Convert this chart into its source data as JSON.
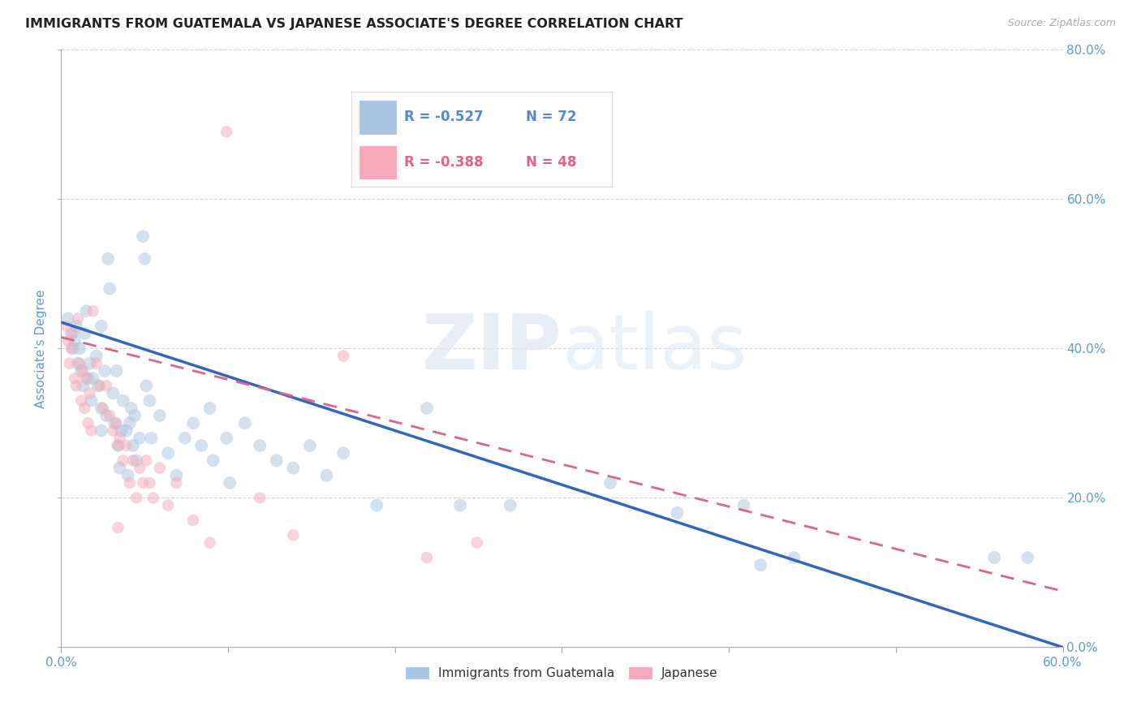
{
  "title": "IMMIGRANTS FROM GUATEMALA VS JAPANESE ASSOCIATE'S DEGREE CORRELATION CHART",
  "source": "Source: ZipAtlas.com",
  "ylabel": "Associate's Degree",
  "xlim": [
    0.0,
    0.6
  ],
  "ylim": [
    0.0,
    0.8
  ],
  "xtick_vals": [
    0.0,
    0.1,
    0.2,
    0.3,
    0.4,
    0.5,
    0.6
  ],
  "ytick_vals": [
    0.0,
    0.2,
    0.4,
    0.6,
    0.8
  ],
  "legend_entries": [
    {
      "label": "Immigrants from Guatemala",
      "color": "#a8c4e0"
    },
    {
      "label": "Japanese",
      "color": "#f4a8b8"
    }
  ],
  "legend_r_values": [
    {
      "r_text": "R = -0.527",
      "n_text": "N = 72",
      "color": "#5588cc",
      "patch_color": "#a8c4e0"
    },
    {
      "r_text": "R = -0.388",
      "n_text": "N = 48",
      "color": "#dd6688",
      "patch_color": "#f4a8b8"
    }
  ],
  "blue_scatter": [
    [
      0.004,
      0.44
    ],
    [
      0.006,
      0.42
    ],
    [
      0.007,
      0.4
    ],
    [
      0.008,
      0.41
    ],
    [
      0.009,
      0.43
    ],
    [
      0.01,
      0.38
    ],
    [
      0.011,
      0.4
    ],
    [
      0.012,
      0.37
    ],
    [
      0.013,
      0.35
    ],
    [
      0.014,
      0.42
    ],
    [
      0.015,
      0.45
    ],
    [
      0.016,
      0.36
    ],
    [
      0.017,
      0.38
    ],
    [
      0.018,
      0.33
    ],
    [
      0.019,
      0.36
    ],
    [
      0.021,
      0.39
    ],
    [
      0.022,
      0.35
    ],
    [
      0.024,
      0.32
    ],
    [
      0.024,
      0.29
    ],
    [
      0.024,
      0.43
    ],
    [
      0.026,
      0.37
    ],
    [
      0.027,
      0.31
    ],
    [
      0.028,
      0.52
    ],
    [
      0.029,
      0.48
    ],
    [
      0.031,
      0.34
    ],
    [
      0.032,
      0.3
    ],
    [
      0.033,
      0.37
    ],
    [
      0.034,
      0.27
    ],
    [
      0.035,
      0.24
    ],
    [
      0.036,
      0.29
    ],
    [
      0.037,
      0.33
    ],
    [
      0.039,
      0.29
    ],
    [
      0.04,
      0.23
    ],
    [
      0.041,
      0.3
    ],
    [
      0.042,
      0.32
    ],
    [
      0.043,
      0.27
    ],
    [
      0.044,
      0.31
    ],
    [
      0.045,
      0.25
    ],
    [
      0.047,
      0.28
    ],
    [
      0.049,
      0.55
    ],
    [
      0.05,
      0.52
    ],
    [
      0.051,
      0.35
    ],
    [
      0.053,
      0.33
    ],
    [
      0.054,
      0.28
    ],
    [
      0.059,
      0.31
    ],
    [
      0.064,
      0.26
    ],
    [
      0.069,
      0.23
    ],
    [
      0.074,
      0.28
    ],
    [
      0.079,
      0.3
    ],
    [
      0.084,
      0.27
    ],
    [
      0.089,
      0.32
    ],
    [
      0.091,
      0.25
    ],
    [
      0.099,
      0.28
    ],
    [
      0.101,
      0.22
    ],
    [
      0.11,
      0.3
    ],
    [
      0.119,
      0.27
    ],
    [
      0.129,
      0.25
    ],
    [
      0.139,
      0.24
    ],
    [
      0.149,
      0.27
    ],
    [
      0.159,
      0.23
    ],
    [
      0.169,
      0.26
    ],
    [
      0.189,
      0.19
    ],
    [
      0.219,
      0.32
    ],
    [
      0.239,
      0.19
    ],
    [
      0.269,
      0.19
    ],
    [
      0.329,
      0.22
    ],
    [
      0.369,
      0.18
    ],
    [
      0.409,
      0.19
    ],
    [
      0.419,
      0.11
    ],
    [
      0.439,
      0.12
    ],
    [
      0.559,
      0.12
    ],
    [
      0.579,
      0.12
    ]
  ],
  "pink_scatter": [
    [
      0.003,
      0.43
    ],
    [
      0.004,
      0.41
    ],
    [
      0.005,
      0.38
    ],
    [
      0.006,
      0.4
    ],
    [
      0.007,
      0.42
    ],
    [
      0.008,
      0.36
    ],
    [
      0.009,
      0.35
    ],
    [
      0.01,
      0.44
    ],
    [
      0.011,
      0.38
    ],
    [
      0.012,
      0.33
    ],
    [
      0.013,
      0.37
    ],
    [
      0.014,
      0.32
    ],
    [
      0.015,
      0.36
    ],
    [
      0.016,
      0.3
    ],
    [
      0.017,
      0.34
    ],
    [
      0.018,
      0.29
    ],
    [
      0.019,
      0.45
    ],
    [
      0.021,
      0.38
    ],
    [
      0.023,
      0.35
    ],
    [
      0.025,
      0.32
    ],
    [
      0.027,
      0.35
    ],
    [
      0.029,
      0.31
    ],
    [
      0.031,
      0.29
    ],
    [
      0.033,
      0.3
    ],
    [
      0.034,
      0.27
    ],
    [
      0.034,
      0.16
    ],
    [
      0.035,
      0.28
    ],
    [
      0.037,
      0.25
    ],
    [
      0.039,
      0.27
    ],
    [
      0.041,
      0.22
    ],
    [
      0.043,
      0.25
    ],
    [
      0.045,
      0.2
    ],
    [
      0.047,
      0.24
    ],
    [
      0.049,
      0.22
    ],
    [
      0.051,
      0.25
    ],
    [
      0.053,
      0.22
    ],
    [
      0.055,
      0.2
    ],
    [
      0.059,
      0.24
    ],
    [
      0.064,
      0.19
    ],
    [
      0.069,
      0.22
    ],
    [
      0.079,
      0.17
    ],
    [
      0.089,
      0.14
    ],
    [
      0.099,
      0.69
    ],
    [
      0.119,
      0.2
    ],
    [
      0.139,
      0.15
    ],
    [
      0.169,
      0.39
    ],
    [
      0.219,
      0.12
    ],
    [
      0.249,
      0.14
    ]
  ],
  "blue_line": {
    "x0": 0.0,
    "y0": 0.435,
    "x1": 0.6,
    "y1": 0.0
  },
  "pink_line": {
    "x0": 0.0,
    "y0": 0.415,
    "x1": 0.6,
    "y1": 0.075
  },
  "watermark_zip": "ZIP",
  "watermark_atlas": "atlas",
  "background_color": "#ffffff",
  "grid_color": "#cccccc",
  "title_color": "#222222",
  "axis_label_color": "#5b9bd5",
  "tick_label_color": "#5b9bd5",
  "scatter_alpha": 0.5
}
